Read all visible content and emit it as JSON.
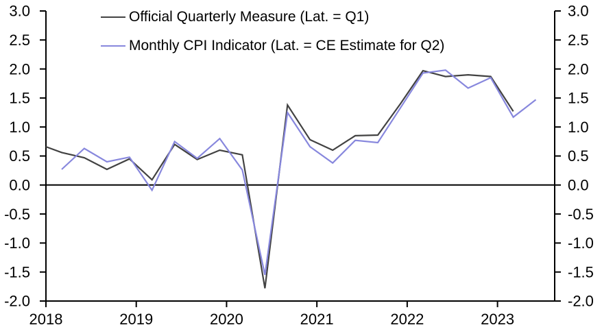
{
  "chart_data": {
    "type": "line",
    "title": "",
    "legend_position": "top-left",
    "grid": "zero-line-only",
    "zero_line": true,
    "quarters": [
      "2018 Q1",
      "2018 Q2",
      "2018 Q3",
      "2018 Q4",
      "2019 Q1",
      "2019 Q2",
      "2019 Q3",
      "2019 Q4",
      "2020 Q1",
      "2020 Q2",
      "2020 Q3",
      "2020 Q4",
      "2021 Q1",
      "2021 Q2",
      "2021 Q3",
      "2021 Q4",
      "2022 Q1",
      "2022 Q2",
      "2022 Q3",
      "2022 Q4",
      "2023 Q1",
      "2023 Q2"
    ],
    "series": [
      {
        "name": "Official Quarterly Measure (Lat. = Q1)",
        "color": "#424242",
        "axis_entry_value": 0.66,
        "values": [
          0.56,
          0.47,
          0.27,
          0.45,
          0.09,
          0.7,
          0.44,
          0.6,
          0.52,
          -1.78,
          1.38,
          0.78,
          0.6,
          0.85,
          0.86,
          1.4,
          1.97,
          1.87,
          1.9,
          1.87,
          1.27
        ]
      },
      {
        "name": "Monthly CPI Indicator (Lat. = CE Estimate for Q2)",
        "color": "#8787DD",
        "values": [
          0.27,
          0.63,
          0.4,
          0.48,
          -0.09,
          0.75,
          0.46,
          0.8,
          0.26,
          -1.55,
          1.25,
          0.66,
          0.38,
          0.77,
          0.73,
          1.33,
          1.93,
          1.98,
          1.67,
          1.85,
          1.17,
          1.47
        ]
      }
    ],
    "y_axis": {
      "min": -2.0,
      "max": 3.0,
      "tick_step": 0.5,
      "ticks": [
        "3.0",
        "2.5",
        "2.0",
        "1.5",
        "1.0",
        "0.5",
        "0.0",
        "-0.5",
        "-1.0",
        "-1.5",
        "-2.0"
      ],
      "shown_on_both_sides": true
    },
    "x_axis": {
      "ticks": [
        "2018",
        "2019",
        "2020",
        "2021",
        "2022",
        "2023"
      ]
    },
    "axis_color": "#000000"
  }
}
